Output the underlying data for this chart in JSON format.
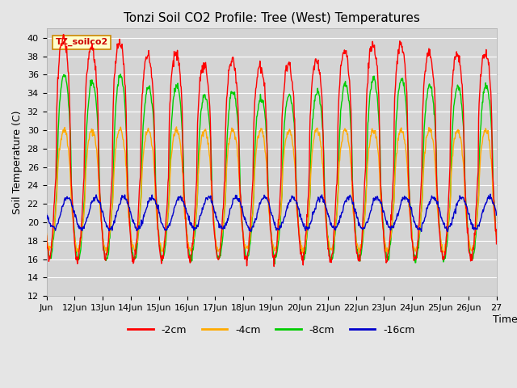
{
  "title": "Tonzi Soil CO2 Profile: Tree (West) Temperatures",
  "xlabel": "Time",
  "ylabel": "Soil Temperature (C)",
  "ylim": [
    12,
    41
  ],
  "yticks": [
    12,
    14,
    16,
    18,
    20,
    22,
    24,
    26,
    28,
    30,
    32,
    34,
    36,
    38,
    40
  ],
  "bg_color": "#e5e5e5",
  "plot_bg_color": "#d4d4d4",
  "grid_color": "#ffffff",
  "annotation_text": "TZ_soilco2",
  "annotation_bg": "#ffffcc",
  "annotation_border": "#cc8800",
  "legend": [
    {
      "label": "-2cm",
      "color": "#ff0000"
    },
    {
      "label": "-4cm",
      "color": "#ffaa00"
    },
    {
      "label": "-8cm",
      "color": "#00cc00"
    },
    {
      "label": "-16cm",
      "color": "#0000cc"
    }
  ],
  "line_width": 1.0,
  "n_points": 960
}
